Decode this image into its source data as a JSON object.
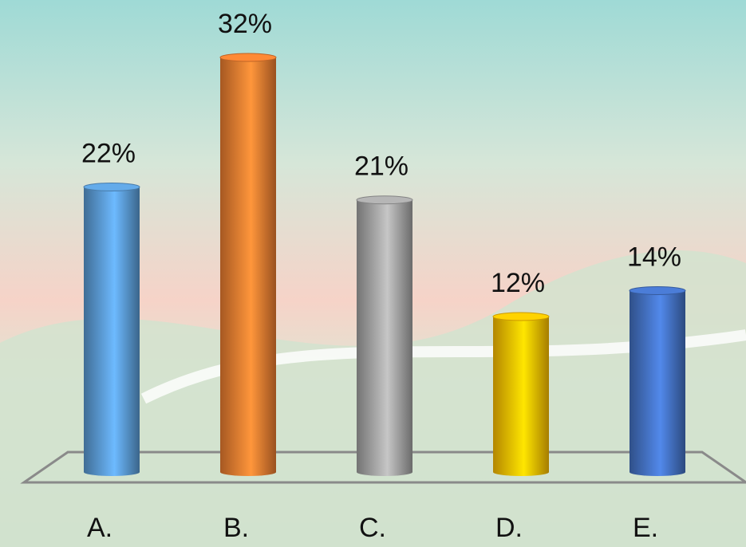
{
  "chart_data": {
    "type": "bar",
    "categories": [
      "A.",
      "B.",
      "C.",
      "D.",
      "E."
    ],
    "values": [
      22,
      32,
      21,
      12,
      14
    ],
    "value_labels": [
      "22%",
      "32%",
      "21%",
      "12%",
      "14%"
    ],
    "colors": [
      "#5b9bd5",
      "#ed7d31",
      "#a5a5a5",
      "#ffc000",
      "#4472c4"
    ]
  }
}
